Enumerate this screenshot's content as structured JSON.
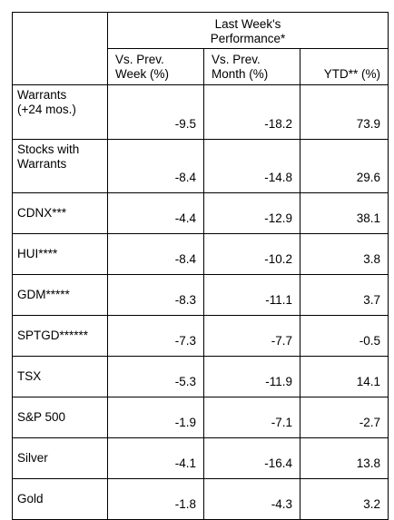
{
  "table": {
    "group_header": "Last Week's\nPerformance*",
    "columns": [
      "Vs. Prev.\nWeek (%)",
      "Vs. Prev.\nMonth (%)",
      "YTD** (%)"
    ],
    "rows": [
      {
        "label": "Warrants\n(+24 mos.)",
        "week": "-9.5",
        "month": "-18.2",
        "ytd": "73.9"
      },
      {
        "label": "Stocks with\nWarrants",
        "week": "-8.4",
        "month": "-14.8",
        "ytd": "29.6"
      },
      {
        "label": "CDNX***",
        "week": "-4.4",
        "month": "-12.9",
        "ytd": "38.1"
      },
      {
        "label": "HUI****",
        "week": "-8.4",
        "month": "-10.2",
        "ytd": "3.8"
      },
      {
        "label": "GDM*****",
        "week": "-8.3",
        "month": "-11.1",
        "ytd": "3.7"
      },
      {
        "label": "SPTGD******",
        "week": "-7.3",
        "month": "-7.7",
        "ytd": "-0.5"
      },
      {
        "label": "TSX",
        "week": "-5.3",
        "month": "-11.9",
        "ytd": "14.1"
      },
      {
        "label": "S&P 500",
        "week": "-1.9",
        "month": "-7.1",
        "ytd": "-2.7"
      },
      {
        "label": "Silver",
        "week": "-4.1",
        "month": "-16.4",
        "ytd": "13.8"
      },
      {
        "label": "Gold",
        "week": "-1.8",
        "month": "-4.3",
        "ytd": "3.2"
      }
    ]
  }
}
